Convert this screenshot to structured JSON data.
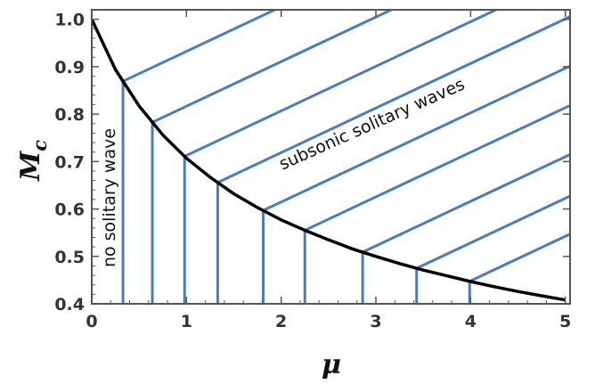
{
  "chart_data": {
    "type": "line",
    "title": "",
    "xlabel": "μ",
    "ylabel": "M",
    "ylabel_subscript": "c",
    "xlim": [
      0,
      5.05
    ],
    "ylim": [
      0.4,
      1.02
    ],
    "x_ticks": [
      "0",
      "1",
      "2",
      "3",
      "4",
      "5"
    ],
    "y_ticks": [
      "0.4",
      "0.5",
      "0.6",
      "0.7",
      "0.8",
      "0.9",
      "1.0"
    ],
    "grid": false,
    "legend": "none",
    "curve_color": "#000000",
    "hatch_color": "#4a7ebb",
    "series": [
      {
        "x": [
          0,
          0.25,
          0.5,
          0.75,
          1.0,
          1.25,
          1.5,
          1.75,
          2.0,
          2.25,
          2.5,
          2.75,
          3.0,
          3.25,
          3.5,
          3.75,
          4.0,
          4.25,
          4.5,
          4.75,
          5.0
        ],
        "values": [
          1.0,
          0.894,
          0.817,
          0.756,
          0.707,
          0.667,
          0.632,
          0.603,
          0.577,
          0.555,
          0.535,
          0.516,
          0.5,
          0.485,
          0.471,
          0.459,
          0.447,
          0.436,
          0.426,
          0.417,
          0.408
        ]
      }
    ],
    "hatch_x": [
      0.33,
      0.64,
      0.98,
      1.33,
      1.81,
      2.25,
      2.86,
      3.43,
      3.99
    ],
    "annotations": [
      {
        "text": "subsonic solitary waves",
        "x": 2.4,
        "y": 0.7
      },
      {
        "text": "no solitary wave",
        "x": 0.12,
        "y": 0.62
      }
    ]
  }
}
